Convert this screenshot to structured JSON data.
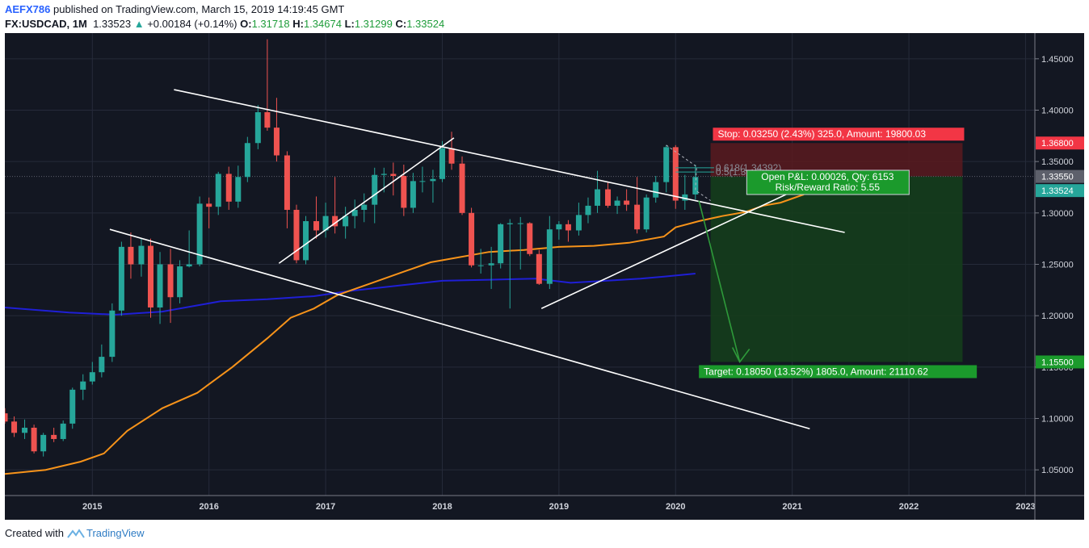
{
  "header": {
    "author": "AEFX786",
    "published_text": "published on TradingView.com, March 15, 2019 14:19:45 GMT",
    "symbol": "FX:USDCAD, 1M",
    "last": "1.33523",
    "change": "+0.00184 (+0.14%)",
    "o_label": "O:",
    "o_value": "1.31718",
    "h_label": "H:",
    "h_value": "1.34674",
    "l_label": "L:",
    "l_value": "1.31299",
    "c_label": "C:",
    "c_value": "1.33524"
  },
  "footer": {
    "created_with": "Created with",
    "brand": "TradingView"
  },
  "colors": {
    "background": "#131722",
    "grid": "#262b3a",
    "up": "#26a69a",
    "down": "#ef5350",
    "ma_blue": "#1f1fd6",
    "ma_orange": "#f7931a",
    "trendline": "#ffffff",
    "stop_zone": "#5a1a1e",
    "target_zone": "#153d1c",
    "stop_label": "#f23645",
    "target_label": "#1b9a2c"
  },
  "chart_data": {
    "type": "candlestick",
    "symbol": "FX:USDCAD",
    "interval": "1M",
    "x_ticks": [
      "2015",
      "2016",
      "2017",
      "2018",
      "2019",
      "2020",
      "2021",
      "2022",
      "2023"
    ],
    "y_ticks": [
      "1.05000",
      "1.10000",
      "1.15000",
      "1.20000",
      "1.25000",
      "1.30000",
      "1.35000",
      "1.40000",
      "1.45000"
    ],
    "ylim": [
      1.025,
      1.475
    ],
    "xlim": [
      2014.25,
      2023.08
    ],
    "candles": [
      {
        "t": 2014.25,
        "o": 1.105,
        "h": 1.11,
        "l": 1.095,
        "c": 1.097
      },
      {
        "t": 2014.33,
        "o": 1.097,
        "h": 1.102,
        "l": 1.082,
        "c": 1.086
      },
      {
        "t": 2014.42,
        "o": 1.086,
        "h": 1.099,
        "l": 1.08,
        "c": 1.091
      },
      {
        "t": 2014.5,
        "o": 1.091,
        "h": 1.094,
        "l": 1.066,
        "c": 1.068
      },
      {
        "t": 2014.58,
        "o": 1.068,
        "h": 1.086,
        "l": 1.063,
        "c": 1.084
      },
      {
        "t": 2014.67,
        "o": 1.084,
        "h": 1.091,
        "l": 1.077,
        "c": 1.08
      },
      {
        "t": 2014.75,
        "o": 1.08,
        "h": 1.098,
        "l": 1.078,
        "c": 1.095
      },
      {
        "t": 2014.83,
        "o": 1.095,
        "h": 1.13,
        "l": 1.09,
        "c": 1.128
      },
      {
        "t": 2014.92,
        "o": 1.128,
        "h": 1.143,
        "l": 1.118,
        "c": 1.136
      },
      {
        "t": 2015.0,
        "o": 1.136,
        "h": 1.155,
        "l": 1.133,
        "c": 1.145
      },
      {
        "t": 2015.08,
        "o": 1.145,
        "h": 1.172,
        "l": 1.14,
        "c": 1.16
      },
      {
        "t": 2015.17,
        "o": 1.16,
        "h": 1.212,
        "l": 1.155,
        "c": 1.205
      },
      {
        "t": 2015.25,
        "o": 1.205,
        "h": 1.272,
        "l": 1.2,
        "c": 1.267
      },
      {
        "t": 2015.33,
        "o": 1.267,
        "h": 1.281,
        "l": 1.236,
        "c": 1.25
      },
      {
        "t": 2015.42,
        "o": 1.25,
        "h": 1.275,
        "l": 1.238,
        "c": 1.268
      },
      {
        "t": 2015.5,
        "o": 1.268,
        "h": 1.275,
        "l": 1.198,
        "c": 1.208
      },
      {
        "t": 2015.58,
        "o": 1.208,
        "h": 1.262,
        "l": 1.192,
        "c": 1.25
      },
      {
        "t": 2015.67,
        "o": 1.25,
        "h": 1.265,
        "l": 1.193,
        "c": 1.218
      },
      {
        "t": 2015.75,
        "o": 1.218,
        "h": 1.254,
        "l": 1.212,
        "c": 1.248
      },
      {
        "t": 2015.83,
        "o": 1.248,
        "h": 1.283,
        "l": 1.247,
        "c": 1.25
      },
      {
        "t": 2015.92,
        "o": 1.25,
        "h": 1.316,
        "l": 1.248,
        "c": 1.309
      },
      {
        "t": 2016.0,
        "o": 1.309,
        "h": 1.315,
        "l": 1.285,
        "c": 1.306
      },
      {
        "t": 2016.08,
        "o": 1.306,
        "h": 1.34,
        "l": 1.298,
        "c": 1.338
      },
      {
        "t": 2016.17,
        "o": 1.338,
        "h": 1.345,
        "l": 1.303,
        "c": 1.311
      },
      {
        "t": 2016.25,
        "o": 1.311,
        "h": 1.346,
        "l": 1.305,
        "c": 1.335
      },
      {
        "t": 2016.33,
        "o": 1.335,
        "h": 1.374,
        "l": 1.33,
        "c": 1.368
      },
      {
        "t": 2016.42,
        "o": 1.368,
        "h": 1.405,
        "l": 1.362,
        "c": 1.398
      },
      {
        "t": 2016.5,
        "o": 1.398,
        "h": 1.469,
        "l": 1.38,
        "c": 1.383
      },
      {
        "t": 2016.58,
        "o": 1.383,
        "h": 1.412,
        "l": 1.35,
        "c": 1.356
      },
      {
        "t": 2016.67,
        "o": 1.356,
        "h": 1.36,
        "l": 1.285,
        "c": 1.303
      },
      {
        "t": 2016.75,
        "o": 1.303,
        "h": 1.308,
        "l": 1.251,
        "c": 1.254
      },
      {
        "t": 2016.83,
        "o": 1.254,
        "h": 1.297,
        "l": 1.25,
        "c": 1.292
      },
      {
        "t": 2016.92,
        "o": 1.292,
        "h": 1.316,
        "l": 1.275,
        "c": 1.283
      },
      {
        "t": 2017.0,
        "o": 1.283,
        "h": 1.31,
        "l": 1.276,
        "c": 1.297
      },
      {
        "t": 2017.08,
        "o": 1.297,
        "h": 1.335,
        "l": 1.28,
        "c": 1.287
      },
      {
        "t": 2017.17,
        "o": 1.287,
        "h": 1.306,
        "l": 1.275,
        "c": 1.297
      },
      {
        "t": 2017.25,
        "o": 1.297,
        "h": 1.313,
        "l": 1.285,
        "c": 1.303
      },
      {
        "t": 2017.33,
        "o": 1.303,
        "h": 1.319,
        "l": 1.291,
        "c": 1.308
      },
      {
        "t": 2017.42,
        "o": 1.308,
        "h": 1.344,
        "l": 1.29,
        "c": 1.337
      },
      {
        "t": 2017.5,
        "o": 1.337,
        "h": 1.344,
        "l": 1.32,
        "c": 1.338
      },
      {
        "t": 2017.58,
        "o": 1.338,
        "h": 1.349,
        "l": 1.317,
        "c": 1.336
      },
      {
        "t": 2017.67,
        "o": 1.336,
        "h": 1.347,
        "l": 1.297,
        "c": 1.305
      },
      {
        "t": 2017.75,
        "o": 1.305,
        "h": 1.339,
        "l": 1.3,
        "c": 1.331
      },
      {
        "t": 2017.83,
        "o": 1.331,
        "h": 1.345,
        "l": 1.32,
        "c": 1.331
      },
      {
        "t": 2017.92,
        "o": 1.331,
        "h": 1.342,
        "l": 1.31,
        "c": 1.333
      },
      {
        "t": 2018.0,
        "o": 1.333,
        "h": 1.37,
        "l": 1.33,
        "c": 1.363
      },
      {
        "t": 2018.08,
        "o": 1.363,
        "h": 1.379,
        "l": 1.342,
        "c": 1.348
      },
      {
        "t": 2018.17,
        "o": 1.348,
        "h": 1.355,
        "l": 1.298,
        "c": 1.3
      },
      {
        "t": 2018.25,
        "o": 1.3,
        "h": 1.305,
        "l": 1.247,
        "c": 1.249
      },
      {
        "t": 2018.33,
        "o": 1.249,
        "h": 1.265,
        "l": 1.241,
        "c": 1.249
      },
      {
        "t": 2018.42,
        "o": 1.249,
        "h": 1.267,
        "l": 1.226,
        "c": 1.251
      },
      {
        "t": 2018.5,
        "o": 1.251,
        "h": 1.29,
        "l": 1.246,
        "c": 1.289
      },
      {
        "t": 2018.58,
        "o": 1.289,
        "h": 1.294,
        "l": 1.207,
        "c": 1.29
      },
      {
        "t": 2018.67,
        "o": 1.29,
        "h": 1.296,
        "l": 1.245,
        "c": 1.29
      },
      {
        "t": 2018.75,
        "o": 1.29,
        "h": 1.291,
        "l": 1.258,
        "c": 1.26
      },
      {
        "t": 2018.83,
        "o": 1.26,
        "h": 1.264,
        "l": 1.23,
        "c": 1.231
      },
      {
        "t": 2018.92,
        "o": 1.231,
        "h": 1.297,
        "l": 1.226,
        "c": 1.284
      },
      {
        "t": 2019.0,
        "o": 1.284,
        "h": 1.292,
        "l": 1.274,
        "c": 1.289
      },
      {
        "t": 2019.08,
        "o": 1.289,
        "h": 1.293,
        "l": 1.272,
        "c": 1.283
      },
      {
        "t": 2019.17,
        "o": 1.283,
        "h": 1.31,
        "l": 1.278,
        "c": 1.298
      },
      {
        "t": 2019.25,
        "o": 1.298,
        "h": 1.315,
        "l": 1.29,
        "c": 1.307
      },
      {
        "t": 2019.33,
        "o": 1.307,
        "h": 1.341,
        "l": 1.3,
        "c": 1.323
      },
      {
        "t": 2019.42,
        "o": 1.323,
        "h": 1.33,
        "l": 1.305,
        "c": 1.307
      },
      {
        "t": 2019.5,
        "o": 1.307,
        "h": 1.316,
        "l": 1.299,
        "c": 1.312
      },
      {
        "t": 2019.58,
        "o": 1.312,
        "h": 1.323,
        "l": 1.302,
        "c": 1.308
      },
      {
        "t": 2019.67,
        "o": 1.308,
        "h": 1.335,
        "l": 1.28,
        "c": 1.284
      },
      {
        "t": 2019.75,
        "o": 1.284,
        "h": 1.318,
        "l": 1.281,
        "c": 1.315
      },
      {
        "t": 2019.83,
        "o": 1.315,
        "h": 1.336,
        "l": 1.31,
        "c": 1.33
      },
      {
        "t": 2019.92,
        "o": 1.33,
        "h": 1.366,
        "l": 1.32,
        "c": 1.364
      },
      {
        "t": 2020.0,
        "o": 1.364,
        "h": 1.366,
        "l": 1.304,
        "c": 1.312
      },
      {
        "t": 2020.08,
        "o": 1.312,
        "h": 1.337,
        "l": 1.303,
        "c": 1.318
      },
      {
        "t": 2020.17,
        "o": 1.318,
        "h": 1.347,
        "l": 1.313,
        "c": 1.335
      }
    ],
    "ma_blue": [
      [
        2014.25,
        1.208
      ],
      [
        2014.8,
        1.203
      ],
      [
        2015.2,
        1.201
      ],
      [
        2015.6,
        1.204
      ],
      [
        2015.9,
        1.21
      ],
      [
        2016.1,
        1.214
      ],
      [
        2016.5,
        1.216
      ],
      [
        2016.9,
        1.219
      ],
      [
        2017.2,
        1.224
      ],
      [
        2017.6,
        1.229
      ],
      [
        2018.0,
        1.234
      ],
      [
        2018.4,
        1.235
      ],
      [
        2018.8,
        1.236
      ],
      [
        2019.1,
        1.232
      ],
      [
        2019.4,
        1.234
      ],
      [
        2019.7,
        1.236
      ],
      [
        2019.9,
        1.238
      ],
      [
        2020.17,
        1.241
      ]
    ],
    "ma_orange": [
      [
        2014.25,
        1.046
      ],
      [
        2014.6,
        1.05
      ],
      [
        2014.9,
        1.058
      ],
      [
        2015.1,
        1.066
      ],
      [
        2015.3,
        1.088
      ],
      [
        2015.6,
        1.11
      ],
      [
        2015.9,
        1.125
      ],
      [
        2016.2,
        1.15
      ],
      [
        2016.5,
        1.178
      ],
      [
        2016.7,
        1.198
      ],
      [
        2016.9,
        1.207
      ],
      [
        2017.1,
        1.22
      ],
      [
        2017.4,
        1.232
      ],
      [
        2017.7,
        1.244
      ],
      [
        2017.9,
        1.252
      ],
      [
        2018.1,
        1.256
      ],
      [
        2018.4,
        1.262
      ],
      [
        2018.7,
        1.264
      ],
      [
        2019.0,
        1.267
      ],
      [
        2019.3,
        1.268
      ],
      [
        2019.6,
        1.271
      ],
      [
        2019.9,
        1.277
      ],
      [
        2020.0,
        1.286
      ],
      [
        2020.2,
        1.292
      ],
      [
        2020.4,
        1.297
      ],
      [
        2020.6,
        1.301
      ],
      [
        2020.75,
        1.307
      ],
      [
        2020.9,
        1.31
      ],
      [
        2021.0,
        1.314
      ],
      [
        2021.1,
        1.318
      ]
    ],
    "trendlines": [
      [
        [
          2015.7,
          1.42
        ],
        [
          2021.45,
          1.281
        ]
      ],
      [
        [
          2015.15,
          1.284
        ],
        [
          2021.15,
          1.09
        ]
      ],
      [
        [
          2016.6,
          1.251
        ],
        [
          2018.1,
          1.373
        ]
      ],
      [
        [
          2018.85,
          1.207
        ],
        [
          2021.25,
          1.334
        ]
      ]
    ],
    "position": {
      "type": "short",
      "entry": 1.3355,
      "stop": 1.368,
      "target": 1.155,
      "current": 1.33524,
      "stop_label": "Stop: 0.03250 (2.43%) 325.0, Amount: 19800.03",
      "target_label": "Target: 0.18050 (13.52%) 1805.0, Amount: 21110.62",
      "pnl_label": "Open P&L: 0.00026, Qty: 6153",
      "rr_label": "Risk/Reward Ratio: 5.55"
    },
    "fib_labels": [
      "0.618(1.34392)",
      "0.5(1.3"
    ],
    "price_tags": {
      "stop": "1.36800",
      "entry": "1.33550",
      "current": "1.33524",
      "target": "1.15500"
    }
  }
}
